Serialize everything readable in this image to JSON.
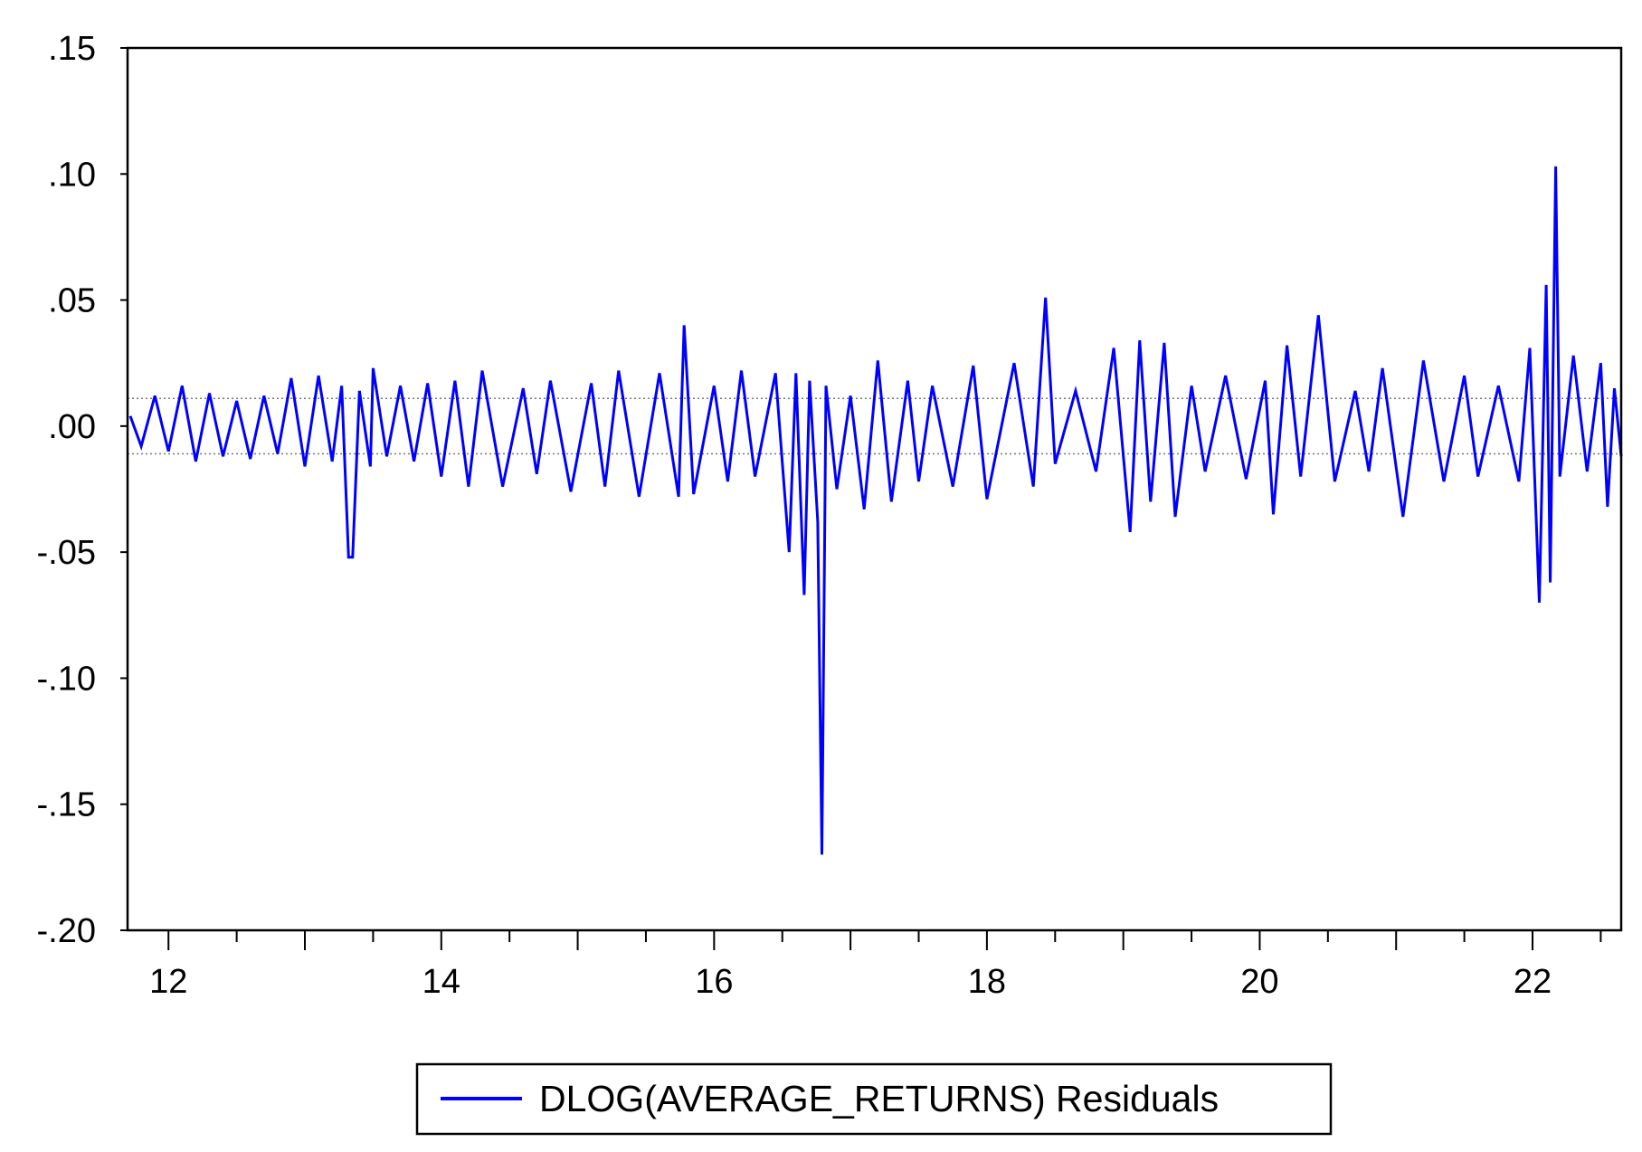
{
  "chart_data": {
    "type": "line",
    "title": "",
    "xlabel": "",
    "ylabel": "",
    "xlim": [
      11.7,
      22.65
    ],
    "ylim": [
      -0.2,
      0.15
    ],
    "y_ticks": [
      {
        "value": 0.15,
        "label": ".15"
      },
      {
        "value": 0.1,
        "label": ".10"
      },
      {
        "value": 0.05,
        "label": ".05"
      },
      {
        "value": 0.0,
        "label": ".00"
      },
      {
        "value": -0.05,
        "label": "-.05"
      },
      {
        "value": -0.1,
        "label": "-.10"
      },
      {
        "value": -0.15,
        "label": "-.15"
      },
      {
        "value": -0.2,
        "label": "-.20"
      }
    ],
    "x_ticks": [
      {
        "value": 12,
        "label": "12"
      },
      {
        "value": 14,
        "label": "14"
      },
      {
        "value": 16,
        "label": "16"
      },
      {
        "value": 18,
        "label": "18"
      },
      {
        "value": 20,
        "label": "20"
      },
      {
        "value": 22,
        "label": "22"
      }
    ],
    "reference_lines": [
      0.011,
      -0.011
    ],
    "grid": false,
    "legend_position": "bottom-center",
    "series": [
      {
        "name": "DLOG(AVERAGE_RETURNS) Residuals",
        "color": "#0000ff",
        "points": [
          [
            11.72,
            0.004
          ],
          [
            11.8,
            -0.008
          ],
          [
            11.9,
            0.012
          ],
          [
            12.0,
            -0.01
          ],
          [
            12.1,
            0.016
          ],
          [
            12.2,
            -0.014
          ],
          [
            12.3,
            0.013
          ],
          [
            12.4,
            -0.012
          ],
          [
            12.5,
            0.01
          ],
          [
            12.6,
            -0.013
          ],
          [
            12.7,
            0.012
          ],
          [
            12.8,
            -0.011
          ],
          [
            12.9,
            0.019
          ],
          [
            13.0,
            -0.016
          ],
          [
            13.1,
            0.02
          ],
          [
            13.2,
            -0.014
          ],
          [
            13.27,
            0.016
          ],
          [
            13.32,
            -0.052
          ],
          [
            13.35,
            -0.052
          ],
          [
            13.4,
            0.014
          ],
          [
            13.48,
            -0.016
          ],
          [
            13.5,
            0.023
          ],
          [
            13.6,
            -0.012
          ],
          [
            13.7,
            0.016
          ],
          [
            13.8,
            -0.014
          ],
          [
            13.9,
            0.017
          ],
          [
            14.0,
            -0.02
          ],
          [
            14.1,
            0.018
          ],
          [
            14.2,
            -0.024
          ],
          [
            14.3,
            0.022
          ],
          [
            14.45,
            -0.024
          ],
          [
            14.6,
            0.015
          ],
          [
            14.7,
            -0.019
          ],
          [
            14.8,
            0.018
          ],
          [
            14.95,
            -0.026
          ],
          [
            15.1,
            0.017
          ],
          [
            15.2,
            -0.024
          ],
          [
            15.3,
            0.022
          ],
          [
            15.45,
            -0.028
          ],
          [
            15.6,
            0.021
          ],
          [
            15.74,
            -0.028
          ],
          [
            15.78,
            0.04
          ],
          [
            15.85,
            -0.027
          ],
          [
            16.0,
            0.016
          ],
          [
            16.1,
            -0.022
          ],
          [
            16.2,
            0.022
          ],
          [
            16.3,
            -0.02
          ],
          [
            16.45,
            0.021
          ],
          [
            16.55,
            -0.05
          ],
          [
            16.6,
            0.021
          ],
          [
            16.66,
            -0.067
          ],
          [
            16.7,
            0.018
          ],
          [
            16.76,
            -0.038
          ],
          [
            16.79,
            -0.17
          ],
          [
            16.82,
            0.016
          ],
          [
            16.9,
            -0.025
          ],
          [
            17.0,
            0.012
          ],
          [
            17.1,
            -0.033
          ],
          [
            17.2,
            0.026
          ],
          [
            17.3,
            -0.03
          ],
          [
            17.42,
            0.018
          ],
          [
            17.5,
            -0.022
          ],
          [
            17.6,
            0.016
          ],
          [
            17.75,
            -0.024
          ],
          [
            17.9,
            0.024
          ],
          [
            18.0,
            -0.029
          ],
          [
            18.2,
            0.025
          ],
          [
            18.34,
            -0.024
          ],
          [
            18.43,
            0.051
          ],
          [
            18.5,
            -0.015
          ],
          [
            18.65,
            0.014
          ],
          [
            18.8,
            -0.018
          ],
          [
            18.93,
            0.031
          ],
          [
            19.05,
            -0.042
          ],
          [
            19.12,
            0.034
          ],
          [
            19.2,
            -0.03
          ],
          [
            19.3,
            0.033
          ],
          [
            19.38,
            -0.036
          ],
          [
            19.5,
            0.016
          ],
          [
            19.6,
            -0.018
          ],
          [
            19.75,
            0.02
          ],
          [
            19.9,
            -0.021
          ],
          [
            20.04,
            0.018
          ],
          [
            20.1,
            -0.035
          ],
          [
            20.2,
            0.032
          ],
          [
            20.3,
            -0.02
          ],
          [
            20.43,
            0.044
          ],
          [
            20.55,
            -0.022
          ],
          [
            20.7,
            0.014
          ],
          [
            20.8,
            -0.018
          ],
          [
            20.9,
            0.023
          ],
          [
            21.05,
            -0.036
          ],
          [
            21.2,
            0.026
          ],
          [
            21.35,
            -0.022
          ],
          [
            21.5,
            0.02
          ],
          [
            21.6,
            -0.02
          ],
          [
            21.75,
            0.016
          ],
          [
            21.9,
            -0.022
          ],
          [
            21.98,
            0.031
          ],
          [
            22.05,
            -0.07
          ],
          [
            22.1,
            0.056
          ],
          [
            22.13,
            -0.062
          ],
          [
            22.17,
            0.103
          ],
          [
            22.2,
            -0.02
          ],
          [
            22.3,
            0.028
          ],
          [
            22.4,
            -0.018
          ],
          [
            22.5,
            0.025
          ],
          [
            22.55,
            -0.032
          ],
          [
            22.6,
            0.015
          ],
          [
            22.65,
            -0.012
          ]
        ]
      }
    ]
  }
}
